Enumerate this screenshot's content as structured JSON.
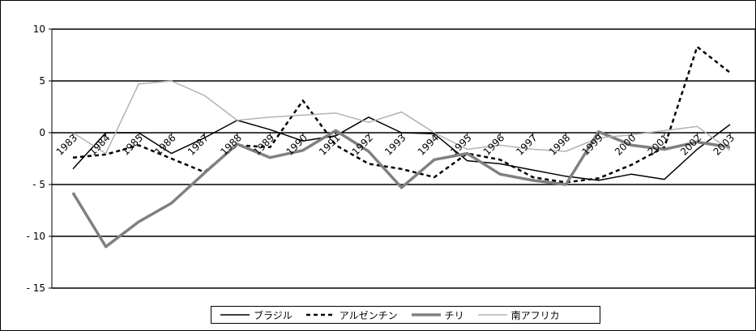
{
  "chart_data": {
    "type": "line",
    "title": "",
    "xlabel": "",
    "ylabel": "",
    "ylim": [
      -15,
      10
    ],
    "yticks": [
      10,
      5,
      0,
      -5,
      -10,
      -15
    ],
    "ytick_labels": [
      "10",
      "5",
      "0",
      "- 5",
      "- 10",
      "- 15"
    ],
    "x": [
      "1983",
      "1984",
      "1985",
      "1986",
      "1987",
      "1988",
      "1989",
      "1990",
      "1991",
      "1992",
      "1993",
      "1994",
      "1995",
      "1996",
      "1997",
      "1998",
      "1999",
      "2000",
      "2001",
      "2002",
      "2003"
    ],
    "grid": "horizontal",
    "legend_position": "bottom",
    "series": [
      {
        "name": "ブラジル",
        "color": "#000000",
        "style": "solid",
        "width": 1.5,
        "values": [
          -3.5,
          0,
          0,
          -2.0,
          -0.5,
          1.2,
          0.3,
          -0.8,
          -0.3,
          1.5,
          0,
          -0.1,
          -2.7,
          -3.0,
          -3.6,
          -4.2,
          -4.6,
          -4.0,
          -4.5,
          -1.6,
          0.8
        ]
      },
      {
        "name": "アルゼンチン",
        "color": "#000000",
        "style": "dashed",
        "width": 2.5,
        "values": [
          -2.4,
          -2.1,
          -1.2,
          -2.5,
          -3.8,
          -1.2,
          -1.4,
          3.1,
          -1.2,
          -3.0,
          -3.5,
          -4.3,
          -2.0,
          -2.6,
          -4.3,
          -4.8,
          -4.4,
          -3.1,
          -1.4,
          8.3,
          5.8
        ]
      },
      {
        "name": "チリ",
        "color": "#808080",
        "style": "solid",
        "width": 3.5,
        "values": [
          -5.8,
          -11.0,
          -8.6,
          -6.8,
          -3.9,
          -1.1,
          -2.4,
          -1.7,
          0.2,
          -1.8,
          -5.3,
          -2.6,
          -2.0,
          -4.0,
          -4.6,
          -5.0,
          0.1,
          -1.2,
          -1.6,
          -0.9,
          -1.4
        ]
      },
      {
        "name": "南アフリカ",
        "color": "#b2b2b2",
        "style": "solid",
        "width": 1.5,
        "values": [
          0,
          -2.0,
          4.7,
          5.0,
          3.6,
          1.2,
          1.5,
          1.7,
          1.9,
          1.0,
          2.0,
          0,
          -1.6,
          -1.2,
          -1.6,
          -1.8,
          -0.5,
          -0.2,
          0.2,
          0.6,
          -1.7
        ]
      }
    ]
  }
}
